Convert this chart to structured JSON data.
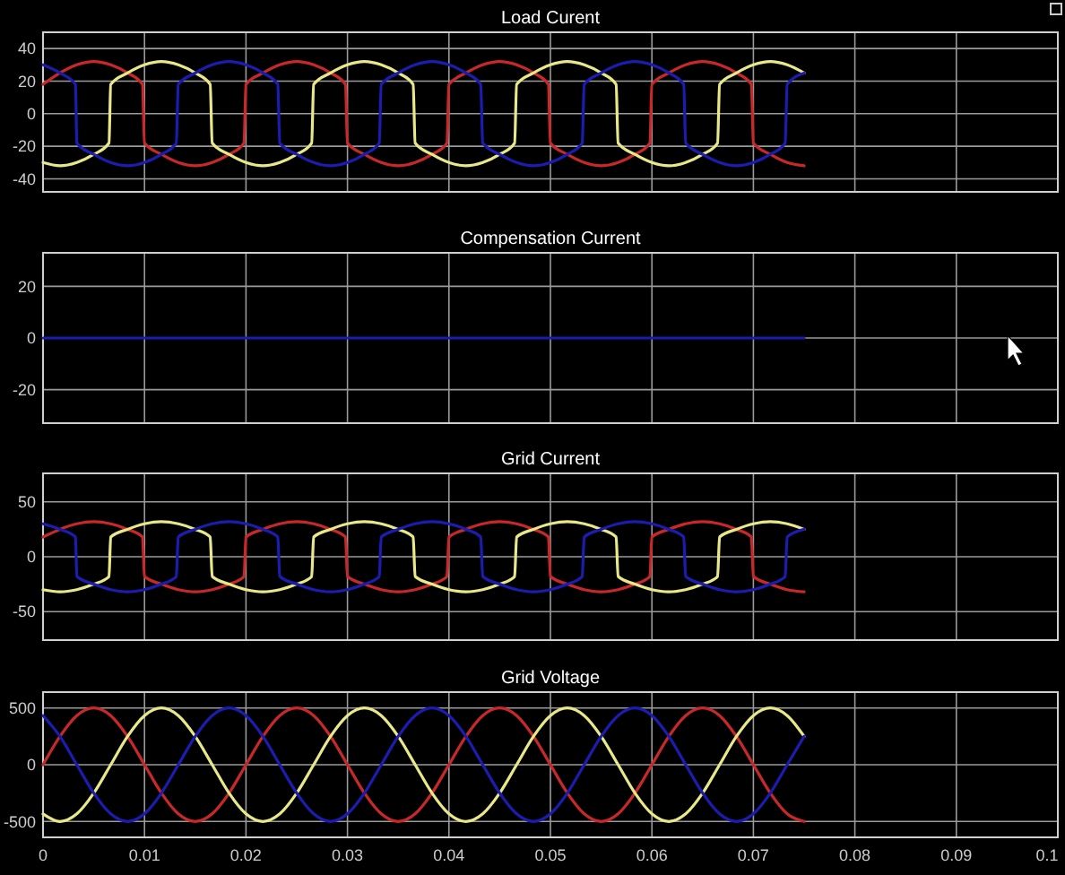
{
  "chart_data": [
    {
      "type": "line",
      "title": "Load Curent",
      "xlim": [
        0,
        0.1
      ],
      "xticks": [
        0,
        0.01,
        0.02,
        0.03,
        0.04,
        0.05,
        0.06,
        0.07,
        0.08,
        0.09,
        0.1
      ],
      "ylim": [
        -48,
        50
      ],
      "yticks": [
        -40,
        -20,
        0,
        20,
        40
      ],
      "grid": true,
      "tick_labels": "y",
      "series": [
        {
          "color": "#c8282a",
          "x": [
            0,
            0.00167,
            0.00333,
            0.005,
            0.00667,
            0.00833,
            0.0098,
            0.01,
            0.01167,
            0.01333,
            0.015,
            0.01667,
            0.01833,
            0.0198,
            0.02,
            0.02167,
            0.02333,
            0.025,
            0.02667,
            0.02833,
            0.0298,
            0.03,
            0.03167,
            0.03333,
            0.035,
            0.03667,
            0.03833,
            0.0398,
            0.04,
            0.04167,
            0.04333,
            0.045,
            0.04667,
            0.04833,
            0.0498,
            0.05,
            0.05167,
            0.05333,
            0.055,
            0.05667,
            0.05833,
            0.0598,
            0.06,
            0.06167,
            0.06333,
            0.065,
            0.06667,
            0.06833,
            0.0698,
            0.07,
            0.07167,
            0.07333,
            0.075
          ],
          "values": [
            18,
            25,
            30,
            32,
            30,
            25,
            18,
            -18,
            -25,
            -30,
            -32,
            -30,
            -25,
            -18,
            18,
            25,
            30,
            32,
            30,
            25,
            18,
            -18,
            -25,
            -30,
            -32,
            -30,
            -25,
            -18,
            18,
            25,
            30,
            32,
            30,
            25,
            18,
            -18,
            -25,
            -30,
            -32,
            -30,
            -25,
            -18,
            18,
            25,
            30,
            32,
            30,
            25,
            18,
            -18,
            -25,
            -30,
            -32
          ]
        },
        {
          "color": "#e8e888",
          "x": [
            0,
            0.00167,
            0.00333,
            0.005,
            0.0065,
            0.00667,
            0.00833,
            0.01,
            0.01167,
            0.01333,
            0.015,
            0.01647,
            0.01667,
            0.01833,
            0.02,
            0.02167,
            0.02333,
            0.025,
            0.02647,
            0.02667,
            0.02833,
            0.03,
            0.03167,
            0.03333,
            0.035,
            0.03647,
            0.03667,
            0.03833,
            0.04,
            0.04167,
            0.04333,
            0.045,
            0.04647,
            0.04667,
            0.04833,
            0.05,
            0.05167,
            0.05333,
            0.055,
            0.05647,
            0.05667,
            0.05833,
            0.06,
            0.06167,
            0.06333,
            0.065,
            0.06647,
            0.06667,
            0.06833,
            0.07,
            0.07167,
            0.07333,
            0.075
          ],
          "values": [
            -30,
            -32,
            -30,
            -25,
            -18,
            18,
            25,
            30,
            32,
            30,
            25,
            18,
            -18,
            -25,
            -30,
            -32,
            -30,
            -25,
            -18,
            18,
            25,
            30,
            32,
            30,
            25,
            18,
            -18,
            -25,
            -30,
            -32,
            -30,
            -25,
            -18,
            18,
            25,
            30,
            32,
            30,
            25,
            18,
            -18,
            -25,
            -30,
            -32,
            -30,
            -25,
            -18,
            18,
            25,
            30,
            32,
            30,
            25
          ]
        },
        {
          "color": "#1c1cb0",
          "x": [
            0,
            0.00167,
            0.0032,
            0.00333,
            0.005,
            0.00667,
            0.00833,
            0.01,
            0.01167,
            0.01313,
            0.01333,
            0.015,
            0.01667,
            0.01833,
            0.02,
            0.02167,
            0.02313,
            0.02333,
            0.025,
            0.02667,
            0.02833,
            0.03,
            0.03167,
            0.03313,
            0.03333,
            0.035,
            0.03667,
            0.03833,
            0.04,
            0.04167,
            0.04313,
            0.04333,
            0.045,
            0.04667,
            0.04833,
            0.05,
            0.05167,
            0.05313,
            0.05333,
            0.055,
            0.05667,
            0.05833,
            0.06,
            0.06167,
            0.06313,
            0.06333,
            0.065,
            0.06667,
            0.06833,
            0.07,
            0.07167,
            0.07313,
            0.07333,
            0.075
          ],
          "values": [
            30,
            25,
            18,
            -18,
            -25,
            -30,
            -32,
            -30,
            -25,
            -18,
            18,
            25,
            30,
            32,
            30,
            25,
            18,
            -18,
            -25,
            -30,
            -32,
            -30,
            -25,
            -18,
            18,
            25,
            30,
            32,
            30,
            25,
            18,
            -18,
            -25,
            -30,
            -32,
            -30,
            -25,
            -18,
            18,
            25,
            30,
            32,
            30,
            25,
            18,
            -18,
            -25,
            -30,
            -32,
            -30,
            -25,
            -18,
            18,
            25
          ]
        }
      ]
    },
    {
      "type": "line",
      "title": "Compensation Current",
      "xlim": [
        0,
        0.1
      ],
      "xticks": [
        0,
        0.01,
        0.02,
        0.03,
        0.04,
        0.05,
        0.06,
        0.07,
        0.08,
        0.09,
        0.1
      ],
      "ylim": [
        -33,
        33
      ],
      "yticks": [
        -20,
        0,
        20
      ],
      "grid": true,
      "tick_labels": "y",
      "series": [
        {
          "color": "#1c1cb0",
          "x": [
            0,
            0.075
          ],
          "values": [
            0,
            0
          ]
        }
      ]
    },
    {
      "type": "line",
      "title": "Grid Current",
      "xlim": [
        0,
        0.1
      ],
      "xticks": [
        0,
        0.01,
        0.02,
        0.03,
        0.04,
        0.05,
        0.06,
        0.07,
        0.08,
        0.09,
        0.1
      ],
      "ylim": [
        -76,
        76
      ],
      "yticks": [
        -50,
        0,
        50
      ],
      "grid": true,
      "tick_labels": "y",
      "series": [
        {
          "color": "#c8282a",
          "x": [
            0,
            0.00167,
            0.00333,
            0.005,
            0.00667,
            0.00833,
            0.0098,
            0.01,
            0.01167,
            0.01333,
            0.015,
            0.01667,
            0.01833,
            0.0198,
            0.02,
            0.02167,
            0.02333,
            0.025,
            0.02667,
            0.02833,
            0.0298,
            0.03,
            0.03167,
            0.03333,
            0.035,
            0.03667,
            0.03833,
            0.0398,
            0.04,
            0.04167,
            0.04333,
            0.045,
            0.04667,
            0.04833,
            0.0498,
            0.05,
            0.05167,
            0.05333,
            0.055,
            0.05667,
            0.05833,
            0.0598,
            0.06,
            0.06167,
            0.06333,
            0.065,
            0.06667,
            0.06833,
            0.0698,
            0.07,
            0.07167,
            0.07333,
            0.075
          ],
          "values": [
            18,
            25,
            30,
            32,
            30,
            25,
            18,
            -18,
            -25,
            -30,
            -32,
            -30,
            -25,
            -18,
            18,
            25,
            30,
            32,
            30,
            25,
            18,
            -18,
            -25,
            -30,
            -32,
            -30,
            -25,
            -18,
            18,
            25,
            30,
            32,
            30,
            25,
            18,
            -18,
            -25,
            -30,
            -32,
            -30,
            -25,
            -18,
            18,
            25,
            30,
            32,
            30,
            25,
            18,
            -18,
            -25,
            -30,
            -32
          ]
        },
        {
          "color": "#e8e888",
          "x": [
            0,
            0.00167,
            0.00333,
            0.005,
            0.0065,
            0.00667,
            0.00833,
            0.01,
            0.01167,
            0.01333,
            0.015,
            0.01647,
            0.01667,
            0.01833,
            0.02,
            0.02167,
            0.02333,
            0.025,
            0.02647,
            0.02667,
            0.02833,
            0.03,
            0.03167,
            0.03333,
            0.035,
            0.03647,
            0.03667,
            0.03833,
            0.04,
            0.04167,
            0.04333,
            0.045,
            0.04647,
            0.04667,
            0.04833,
            0.05,
            0.05167,
            0.05333,
            0.055,
            0.05647,
            0.05667,
            0.05833,
            0.06,
            0.06167,
            0.06333,
            0.065,
            0.06647,
            0.06667,
            0.06833,
            0.07,
            0.07167,
            0.07333,
            0.075
          ],
          "values": [
            -30,
            -32,
            -30,
            -25,
            -18,
            18,
            25,
            30,
            32,
            30,
            25,
            18,
            -18,
            -25,
            -30,
            -32,
            -30,
            -25,
            -18,
            18,
            25,
            30,
            32,
            30,
            25,
            18,
            -18,
            -25,
            -30,
            -32,
            -30,
            -25,
            -18,
            18,
            25,
            30,
            32,
            30,
            25,
            18,
            -18,
            -25,
            -30,
            -32,
            -30,
            -25,
            -18,
            18,
            25,
            30,
            32,
            30,
            25
          ]
        },
        {
          "color": "#1c1cb0",
          "x": [
            0,
            0.00167,
            0.0032,
            0.00333,
            0.005,
            0.00667,
            0.00833,
            0.01,
            0.01167,
            0.01313,
            0.01333,
            0.015,
            0.01667,
            0.01833,
            0.02,
            0.02167,
            0.02313,
            0.02333,
            0.025,
            0.02667,
            0.02833,
            0.03,
            0.03167,
            0.03313,
            0.03333,
            0.035,
            0.03667,
            0.03833,
            0.04,
            0.04167,
            0.04313,
            0.04333,
            0.045,
            0.04667,
            0.04833,
            0.05,
            0.05167,
            0.05313,
            0.05333,
            0.055,
            0.05667,
            0.05833,
            0.06,
            0.06167,
            0.06313,
            0.06333,
            0.065,
            0.06667,
            0.06833,
            0.07,
            0.07167,
            0.07313,
            0.07333,
            0.075
          ],
          "values": [
            30,
            25,
            18,
            -18,
            -25,
            -30,
            -32,
            -30,
            -25,
            -18,
            18,
            25,
            30,
            32,
            30,
            25,
            18,
            -18,
            -25,
            -30,
            -32,
            -30,
            -25,
            -18,
            18,
            25,
            30,
            32,
            30,
            25,
            18,
            -18,
            -25,
            -30,
            -32,
            -30,
            -25,
            -18,
            18,
            25,
            30,
            32,
            30,
            25,
            18,
            -18,
            -25,
            -30,
            -32,
            -30,
            -25,
            -18,
            18,
            25
          ]
        }
      ]
    },
    {
      "type": "line",
      "title": "Grid Voltage",
      "x": [
        0,
        0.00167,
        0.00333,
        0.005,
        0.00667,
        0.00833,
        0.01,
        0.01167,
        0.01333,
        0.015,
        0.01667,
        0.01833,
        0.02,
        0.02167,
        0.02333,
        0.025,
        0.02667,
        0.02833,
        0.03,
        0.03167,
        0.03333,
        0.035,
        0.03667,
        0.03833,
        0.04,
        0.04167,
        0.04333,
        0.045,
        0.04667,
        0.04833,
        0.05,
        0.05167,
        0.05333,
        0.055,
        0.05667,
        0.05833,
        0.06,
        0.06167,
        0.06333,
        0.065,
        0.06667,
        0.06833,
        0.07,
        0.07167,
        0.07333,
        0.075
      ],
      "xlim": [
        0,
        0.1
      ],
      "xticks": [
        0,
        0.01,
        0.02,
        0.03,
        0.04,
        0.05,
        0.06,
        0.07,
        0.08,
        0.09,
        0.1
      ],
      "ylim": [
        -640,
        640
      ],
      "yticks": [
        -500,
        0,
        500
      ],
      "grid": true,
      "series": [
        {
          "color": "#c8282a",
          "values": [
            0,
            250,
            433,
            500,
            433,
            250,
            0,
            -250,
            -433,
            -500,
            -433,
            -250,
            0,
            250,
            433,
            500,
            433,
            250,
            0,
            -250,
            -433,
            -500,
            -433,
            -250,
            0,
            250,
            433,
            500,
            433,
            250,
            0,
            -250,
            -433,
            -500,
            -433,
            -250,
            0,
            250,
            433,
            500,
            433,
            250,
            0,
            -250,
            -433,
            -500
          ]
        },
        {
          "color": "#e8e888",
          "values": [
            -433,
            -500,
            -433,
            -250,
            0,
            250,
            433,
            500,
            433,
            250,
            0,
            -250,
            -433,
            -500,
            -433,
            -250,
            0,
            250,
            433,
            500,
            433,
            250,
            0,
            -250,
            -433,
            -500,
            -433,
            -250,
            0,
            250,
            433,
            500,
            433,
            250,
            0,
            -250,
            -433,
            -500,
            -433,
            -250,
            0,
            250,
            433,
            500,
            433,
            250
          ]
        },
        {
          "color": "#1c1cb0",
          "values": [
            433,
            250,
            0,
            -250,
            -433,
            -500,
            -433,
            -250,
            0,
            250,
            433,
            500,
            433,
            250,
            0,
            -250,
            -433,
            -500,
            -433,
            -250,
            0,
            250,
            433,
            500,
            433,
            250,
            0,
            -250,
            -433,
            -500,
            -433,
            -250,
            0,
            250,
            433,
            500,
            433,
            250,
            0,
            -250,
            -433,
            -500,
            -433,
            -250,
            0,
            250
          ]
        }
      ]
    }
  ]
}
